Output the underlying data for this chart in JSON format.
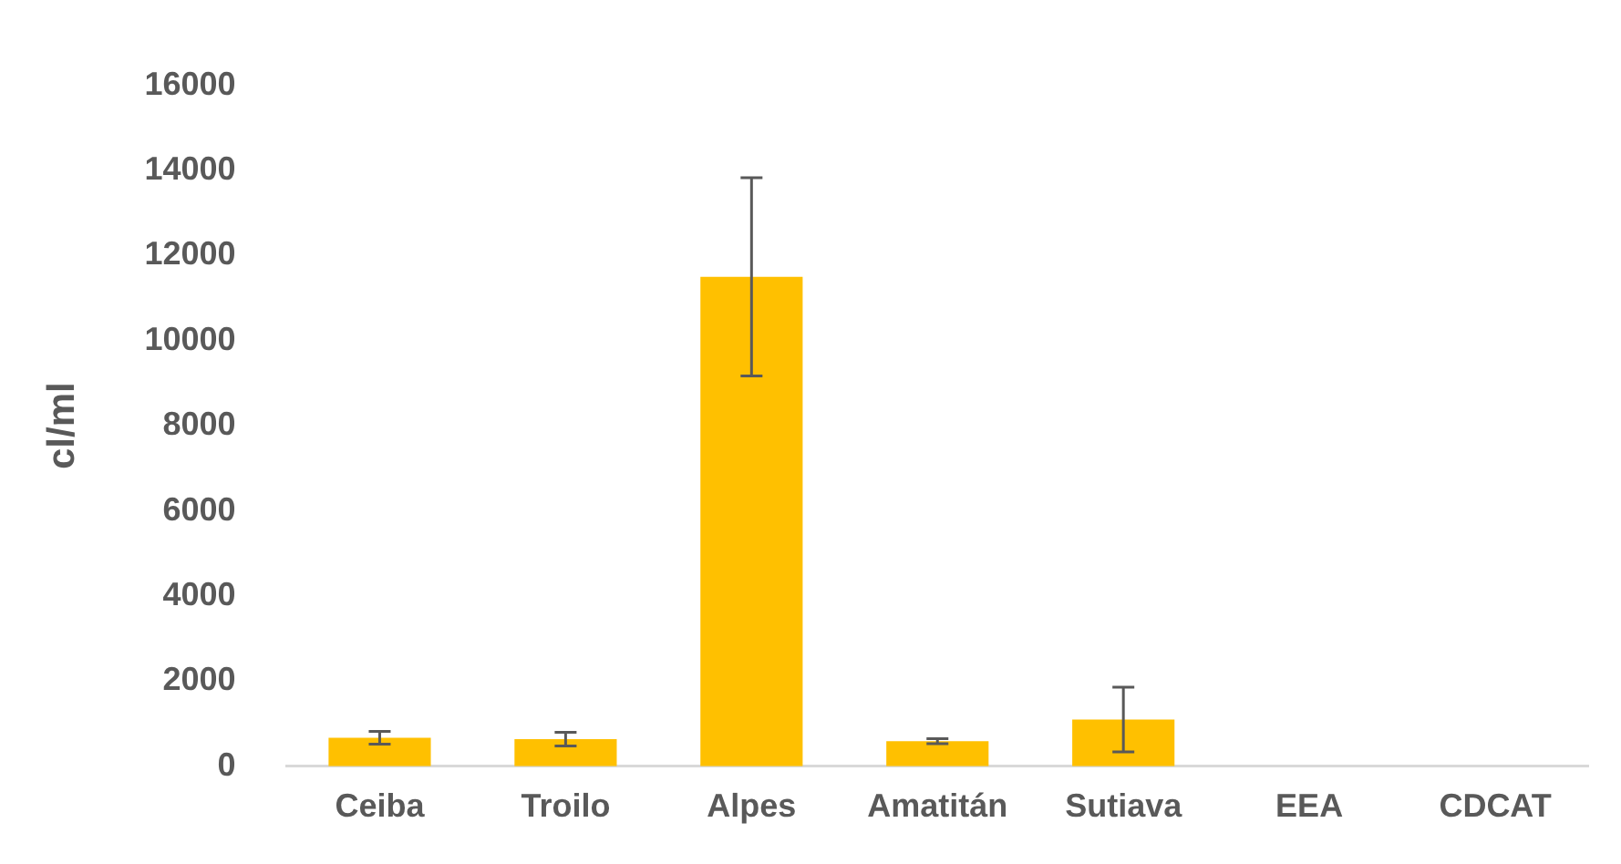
{
  "chart_data": {
    "type": "bar",
    "ylabel": "cl/ml",
    "categories": [
      "Ceiba",
      "Troilo",
      "Alpes",
      "Amatitán",
      "Sutiava",
      "EEA",
      "CDCAT"
    ],
    "values": [
      670,
      640,
      11500,
      590,
      1100,
      null,
      null
    ],
    "errors": [
      150,
      160,
      2330,
      60,
      760,
      null,
      null
    ],
    "color": "#ffc000",
    "ylim": [
      0,
      16000
    ],
    "yticks": [
      0,
      2000,
      4000,
      6000,
      8000,
      10000,
      12000,
      14000,
      16000
    ],
    "grid": false,
    "legend": false
  }
}
